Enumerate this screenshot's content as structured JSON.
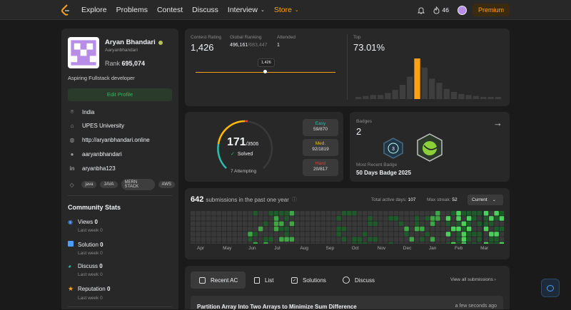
{
  "nav": {
    "links": [
      "Explore",
      "Problems",
      "Contest",
      "Discuss",
      "Interview",
      "Store"
    ],
    "streak": "46",
    "premium": "Premium"
  },
  "profile": {
    "name": "Aryan Bhandari",
    "username": "Aaryanbhandari",
    "rank_label": "Rank",
    "rank": "695,074",
    "bio": "Aspiring Fullstack developer",
    "edit": "Edit Profile",
    "location": "India",
    "university": "UPES University",
    "website": "http://aryanbhandari.online",
    "github": "aaryanbhandari",
    "linkedin": "aryanbha123",
    "tags": [
      "java",
      "JAVA",
      "MERN STACK",
      "AWS"
    ]
  },
  "community": {
    "title": "Community Stats",
    "items": [
      {
        "label": "Views",
        "value": "0",
        "week": "Last week",
        "week_val": "0"
      },
      {
        "label": "Solution",
        "value": "0",
        "week": "Last week",
        "week_val": "0"
      },
      {
        "label": "Discuss",
        "value": "0",
        "week": "Last week",
        "week_val": "0"
      },
      {
        "label": "Reputation",
        "value": "0",
        "week": "Last week",
        "week_val": "0"
      }
    ]
  },
  "contest": {
    "rating_label": "Contest Rating",
    "rating": "1,426",
    "global_label": "Global Ranking",
    "global": "496,161",
    "global_total": "/683,447",
    "attended_label": "Attended",
    "attended": "1",
    "tooltip": "1,426",
    "top_label": "Top",
    "top": "73.01%",
    "slider_fraction": 0.43,
    "histogram": [
      2,
      3,
      4,
      4,
      6,
      9,
      14,
      22,
      40,
      31,
      20,
      16,
      10,
      7,
      5,
      4,
      3,
      2,
      2,
      1
    ],
    "histogram_highlight": 8,
    "highlight_color": "#ffa116",
    "bar_color": "#3e3e3e"
  },
  "solved": {
    "count": "171",
    "total": "/3506",
    "label": "Solved",
    "attempting": "7 Attempting",
    "easy_label": "Easy",
    "easy": "59/870",
    "med_label": "Med.",
    "med": "92/1819",
    "hard_label": "Hard",
    "hard": "20/817"
  },
  "badges": {
    "label": "Badges",
    "count": "2",
    "recent_label": "Most Recent Badge",
    "recent": "50 Days Badge 2025"
  },
  "submissions": {
    "count": "642",
    "text": "submissions in the past one year",
    "active_label": "Total active days:",
    "active": "107",
    "streak_label": "Max streak:",
    "streak": "52",
    "year": "Current",
    "months": [
      "Apr",
      "May",
      "Jun",
      "Jul",
      "Aug",
      "Sep",
      "Oct",
      "Nov",
      "Dec",
      "Jan",
      "Feb",
      "Mar"
    ]
  },
  "tabs": {
    "recent": "Recent AC",
    "list": "List",
    "solutions": "Solutions",
    "discuss": "Discuss",
    "view_all": "View all submissions"
  },
  "recent_item": {
    "title": "Partition Array Into Two Arrays to Minimize Sum Difference",
    "time": "a few seconds ago"
  }
}
